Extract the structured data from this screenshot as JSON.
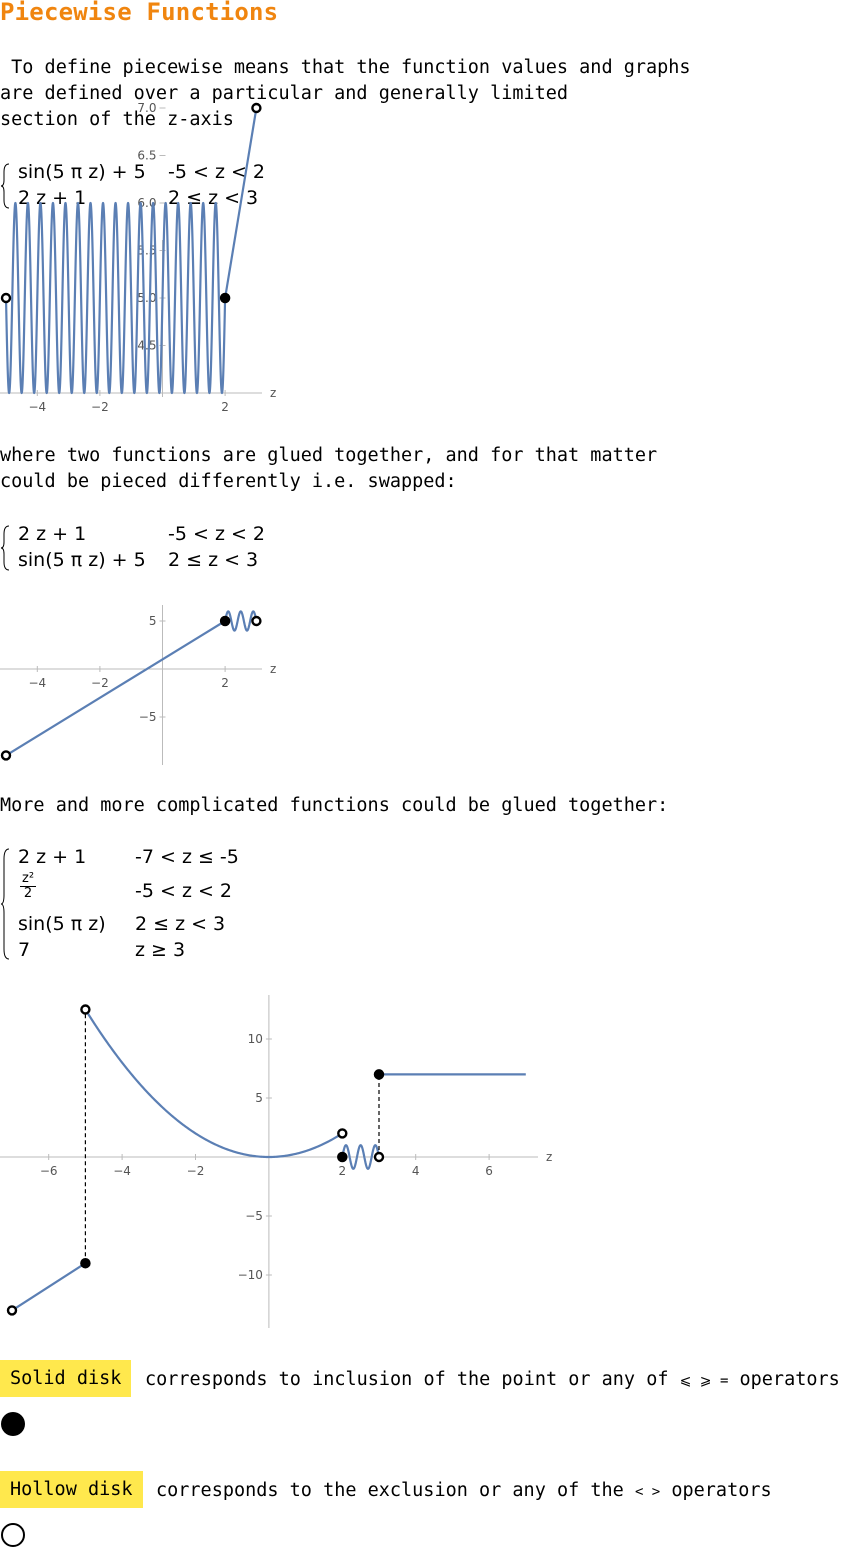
{
  "title": "Piecewise Functions",
  "intro": [
    " To define piecewise means that the function values and graphs",
    "are defined over a particular and generally limited",
    "section of the z-axis"
  ],
  "glue_text": [
    "where two functions are glued together, and for that matter",
    "could be pieced differently i.e. swapped:"
  ],
  "more_text": "More and more complicated functions could be glued together:",
  "piecewise1": [
    {
      "expr": "sin(5 π z) + 5",
      "cond": "-5 < z < 2"
    },
    {
      "expr": "2 z + 1",
      "cond": "2 ≤ z < 3"
    }
  ],
  "piecewise2": [
    {
      "expr": "2 z + 1",
      "cond": "-5 < z < 2"
    },
    {
      "expr": "sin(5 π z) + 5",
      "cond": "2 ≤ z < 3"
    }
  ],
  "piecewise3": [
    {
      "expr": "2 z + 1",
      "cond": "-7 < z ≤ -5"
    },
    {
      "expr_num": "z²",
      "expr_den": "2",
      "cond": "-5 < z < 2"
    },
    {
      "expr": "sin(5 π z)",
      "cond": "2 ≤ z < 3"
    },
    {
      "expr": "7",
      "cond": "z ≥ 3"
    }
  ],
  "plot1": {
    "axis_label": "z",
    "x_ticks": [
      "-4",
      "-2",
      "2"
    ],
    "y_ticks": [
      "4.5",
      "5.0",
      "5.5",
      "6.0",
      "6.5",
      "7.0"
    ]
  },
  "plot2": {
    "axis_label": "z",
    "x_ticks": [
      "-4",
      "-2",
      "2"
    ],
    "y_ticks": [
      "-5",
      "5"
    ]
  },
  "plot3": {
    "axis_label": "z",
    "x_ticks": [
      "-6",
      "-4",
      "-2",
      "2",
      "4",
      "6"
    ],
    "y_ticks": [
      "-10",
      "-5",
      "5",
      "10"
    ]
  },
  "legend": {
    "solid_label": "Solid disk",
    "solid_text": "corresponds to inclusion of the point or any of",
    "solid_ops": "⩽ ⩾ =",
    "solid_tail": "operators",
    "hollow_label": "Hollow disk",
    "hollow_text": "corresponds to the exclusion or any of the",
    "hollow_ops": "< >",
    "hollow_tail": "operators"
  },
  "colors": {
    "title": "#f0850f",
    "curve": "#5b7fb4",
    "badge": "#ffe84d"
  }
}
